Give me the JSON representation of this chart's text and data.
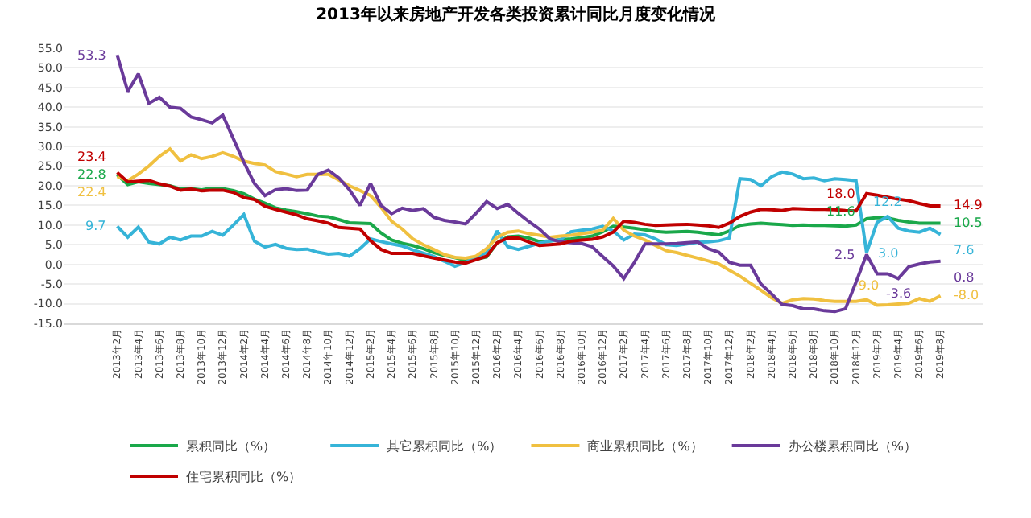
{
  "chart_data": {
    "type": "line",
    "title": "2013年以来房地产开发各类投资累计同比月度变化情况",
    "categories": [
      "2013年2月",
      null,
      "2013年4月",
      null,
      "2013年6月",
      null,
      "2013年8月",
      null,
      "2013年10月",
      null,
      "2013年12月",
      null,
      "2014年2月",
      null,
      "2014年4月",
      null,
      "2014年6月",
      null,
      "2014年8月",
      null,
      "2014年10月",
      null,
      "2014年12月",
      null,
      "2015年2月",
      null,
      "2015年4月",
      null,
      "2015年6月",
      null,
      "2015年8月",
      null,
      "2015年10月",
      null,
      "2015年12月",
      null,
      "2016年2月",
      null,
      "2016年4月",
      null,
      "2016年6月",
      null,
      "2016年8月",
      null,
      "2016年10月",
      null,
      "2016年12月",
      null,
      "2017年2月",
      null,
      "2017年4月",
      null,
      "2017年6月",
      null,
      "2017年8月",
      null,
      "2017年10月",
      null,
      "2017年12月",
      null,
      "2018年2月",
      null,
      "2018年4月",
      null,
      "2018年6月",
      null,
      "2018年8月",
      null,
      "2018年10月",
      null,
      "2018年12月",
      null,
      "2019年2月",
      null,
      "2019年4月",
      null,
      "2019年6月",
      null,
      "2019年8月"
    ],
    "series": [
      {
        "name": "累积同比（%）",
        "color": "#1aa84a",
        "values": [
          22.8,
          20.3,
          21.0,
          20.6,
          20.3,
          20.0,
          19.2,
          19.3,
          19.0,
          19.4,
          19.3,
          18.8,
          18.0,
          16.6,
          15.6,
          14.4,
          13.8,
          13.4,
          12.9,
          12.3,
          12.1,
          11.4,
          10.6,
          10.5,
          10.4,
          8.0,
          6.2,
          5.4,
          4.8,
          4.0,
          3.0,
          2.3,
          1.7,
          1.0,
          1.3,
          1.9,
          5.5,
          7.0,
          7.2,
          6.7,
          5.8,
          6.0,
          6.3,
          6.5,
          6.8,
          7.2,
          8.3,
          9.7,
          9.5,
          9.2,
          8.8,
          8.4,
          8.2,
          8.3,
          8.4,
          8.2,
          7.8,
          7.5,
          8.5,
          9.9,
          10.3,
          10.5,
          10.3,
          10.1,
          9.9,
          10.0,
          9.9,
          9.9,
          9.8,
          9.7,
          10.0,
          11.6,
          11.9,
          11.8,
          11.2,
          10.8,
          10.5,
          10.5,
          10.5
        ],
        "value_labels": [
          "22.8",
          null,
          null,
          null,
          null,
          null,
          null,
          null,
          null,
          null,
          null,
          null,
          null,
          null,
          null,
          null,
          null,
          null,
          null,
          null,
          null,
          null,
          null,
          null,
          null,
          null,
          null,
          null,
          null,
          null,
          null,
          null,
          null,
          null,
          null,
          null,
          null,
          null,
          null,
          null,
          null,
          null,
          null,
          null,
          null,
          null,
          null,
          null,
          null,
          null,
          null,
          null,
          null,
          null,
          null,
          null,
          null,
          null,
          null,
          null,
          null,
          null,
          null,
          null,
          null,
          null,
          null,
          null,
          null,
          null,
          null,
          "11.6",
          null,
          null,
          null,
          null,
          null,
          null,
          "10.5"
        ]
      },
      {
        "name": "其它累积同比（%）",
        "color": "#36b4d8",
        "values": [
          9.7,
          6.9,
          9.5,
          5.7,
          5.2,
          6.9,
          6.2,
          7.2,
          7.2,
          8.4,
          7.4,
          10.0,
          12.7,
          5.9,
          4.4,
          5.1,
          4.1,
          3.8,
          3.9,
          3.1,
          2.6,
          2.8,
          2.1,
          4.0,
          6.5,
          5.8,
          5.2,
          4.7,
          3.7,
          2.9,
          2.0,
          0.8,
          -0.5,
          0.5,
          1.9,
          3.0,
          8.5,
          4.5,
          3.8,
          4.6,
          5.4,
          5.9,
          6.3,
          8.3,
          8.7,
          9.0,
          9.7,
          8.5,
          6.2,
          7.7,
          7.5,
          6.5,
          5.0,
          4.8,
          5.2,
          5.6,
          5.7,
          6.0,
          6.7,
          21.8,
          21.6,
          20.0,
          22.3,
          23.5,
          23.0,
          21.8,
          22.0,
          21.3,
          21.8,
          21.6,
          21.3,
          3.0,
          10.7,
          12.2,
          9.2,
          8.5,
          8.2,
          9.2,
          7.6
        ],
        "value_labels": [
          "9.7",
          null,
          null,
          null,
          null,
          null,
          null,
          null,
          null,
          null,
          null,
          null,
          null,
          null,
          null,
          null,
          null,
          null,
          null,
          null,
          null,
          null,
          null,
          null,
          null,
          null,
          null,
          null,
          null,
          null,
          null,
          null,
          null,
          null,
          null,
          null,
          null,
          null,
          null,
          null,
          null,
          null,
          null,
          null,
          null,
          null,
          null,
          null,
          null,
          null,
          null,
          null,
          null,
          null,
          null,
          null,
          null,
          null,
          null,
          null,
          null,
          null,
          null,
          null,
          null,
          null,
          null,
          null,
          null,
          null,
          null,
          "3.0",
          null,
          "12.2",
          null,
          null,
          null,
          null,
          "7.6"
        ]
      },
      {
        "name": "商业累积同比（%）",
        "color": "#f0c040",
        "values": [
          22.4,
          21.3,
          23.0,
          25.0,
          27.5,
          29.4,
          26.3,
          27.9,
          26.9,
          27.5,
          28.4,
          27.5,
          26.3,
          25.7,
          25.3,
          23.6,
          23.0,
          22.3,
          22.9,
          22.9,
          22.9,
          21.5,
          20.0,
          18.8,
          17.5,
          14.5,
          11.0,
          9.0,
          6.5,
          5.0,
          3.8,
          2.5,
          1.8,
          1.6,
          2.1,
          4.0,
          6.9,
          8.2,
          8.5,
          7.8,
          7.4,
          6.9,
          7.2,
          7.4,
          7.8,
          8.2,
          8.7,
          11.7,
          8.7,
          7.2,
          6.2,
          4.8,
          3.5,
          3.0,
          2.3,
          1.6,
          0.9,
          0.1,
          -1.5,
          -3.0,
          -4.8,
          -6.6,
          -8.5,
          -9.9,
          -9.0,
          -8.7,
          -8.8,
          -9.2,
          -9.4,
          -9.4,
          -9.4,
          -9.0,
          -10.4,
          -10.3,
          -10.1,
          -9.9,
          -8.7,
          -9.4,
          -8.0
        ],
        "value_labels": [
          "22.4",
          null,
          null,
          null,
          null,
          null,
          null,
          null,
          null,
          null,
          null,
          null,
          null,
          null,
          null,
          null,
          null,
          null,
          null,
          null,
          null,
          null,
          null,
          null,
          null,
          null,
          null,
          null,
          null,
          null,
          null,
          null,
          null,
          null,
          null,
          null,
          null,
          null,
          null,
          null,
          null,
          null,
          null,
          null,
          null,
          null,
          null,
          null,
          null,
          null,
          null,
          null,
          null,
          null,
          null,
          null,
          null,
          null,
          null,
          null,
          null,
          null,
          null,
          null,
          null,
          null,
          null,
          null,
          null,
          null,
          null,
          "-9.0",
          null,
          null,
          null,
          null,
          null,
          null,
          "-8.0"
        ]
      },
      {
        "name": "办公楼累积同比（%）",
        "color": "#6a3a9a",
        "values": [
          53.3,
          44.0,
          48.5,
          41.0,
          42.5,
          40.0,
          39.7,
          37.5,
          36.8,
          36.0,
          38.0,
          32.0,
          26.0,
          20.6,
          17.5,
          19.0,
          19.3,
          18.8,
          18.9,
          22.9,
          24.0,
          22.0,
          19.0,
          15.0,
          20.6,
          15.0,
          12.9,
          14.3,
          13.7,
          14.2,
          12.0,
          11.2,
          10.8,
          10.3,
          13.0,
          16.0,
          14.2,
          15.3,
          13.0,
          10.9,
          9.0,
          6.5,
          5.7,
          5.5,
          5.3,
          4.5,
          2.0,
          -0.4,
          -3.6,
          0.5,
          5.2,
          5.2,
          5.2,
          5.3,
          5.5,
          5.7,
          4.0,
          3.1,
          0.5,
          -0.2,
          -0.2,
          -5.0,
          -7.5,
          -10.2,
          -10.5,
          -11.3,
          -11.3,
          -11.8,
          -12.0,
          -11.3,
          -4.5,
          2.5,
          -2.4,
          -2.4,
          -3.6,
          -0.6,
          0.1,
          0.6,
          0.8
        ],
        "value_labels": [
          "53.3",
          null,
          null,
          null,
          null,
          null,
          null,
          null,
          null,
          null,
          null,
          null,
          null,
          null,
          null,
          null,
          null,
          null,
          null,
          null,
          null,
          null,
          null,
          null,
          null,
          null,
          null,
          null,
          null,
          null,
          null,
          null,
          null,
          null,
          null,
          null,
          null,
          null,
          null,
          null,
          null,
          null,
          null,
          null,
          null,
          null,
          null,
          null,
          null,
          null,
          null,
          null,
          null,
          null,
          null,
          null,
          null,
          null,
          null,
          null,
          null,
          null,
          null,
          null,
          null,
          null,
          null,
          null,
          null,
          null,
          null,
          "2.5",
          null,
          null,
          "-3.6",
          null,
          null,
          null,
          "0.8"
        ]
      },
      {
        "name": "住宅累积同比（%）",
        "color": "#c00000",
        "values": [
          23.4,
          21.0,
          21.2,
          21.4,
          20.5,
          19.9,
          18.9,
          19.2,
          18.7,
          18.9,
          18.9,
          18.3,
          17.0,
          16.5,
          14.8,
          14.0,
          13.3,
          12.6,
          11.6,
          11.1,
          10.5,
          9.4,
          9.2,
          9.0,
          6.0,
          3.8,
          2.8,
          2.8,
          2.8,
          2.2,
          1.6,
          1.1,
          0.6,
          0.3,
          1.2,
          2.1,
          5.5,
          6.7,
          6.7,
          5.7,
          4.8,
          5.0,
          5.2,
          5.9,
          6.2,
          6.4,
          7.0,
          8.2,
          11.0,
          10.7,
          10.2,
          9.9,
          10.0,
          10.1,
          10.2,
          10.0,
          9.8,
          9.4,
          10.5,
          12.2,
          13.3,
          14.0,
          13.9,
          13.7,
          14.2,
          14.1,
          14.0,
          14.0,
          13.9,
          13.7,
          13.6,
          18.0,
          17.6,
          17.1,
          16.6,
          16.2,
          15.5,
          14.9,
          14.9
        ],
        "value_labels": [
          "23.4",
          null,
          null,
          null,
          null,
          null,
          null,
          null,
          null,
          null,
          null,
          null,
          null,
          null,
          null,
          null,
          null,
          null,
          null,
          null,
          null,
          null,
          null,
          null,
          null,
          null,
          null,
          null,
          null,
          null,
          null,
          null,
          null,
          null,
          null,
          null,
          null,
          null,
          null,
          null,
          null,
          null,
          null,
          null,
          null,
          null,
          null,
          null,
          null,
          null,
          null,
          null,
          null,
          null,
          null,
          null,
          null,
          null,
          null,
          null,
          null,
          null,
          null,
          null,
          null,
          null,
          null,
          null,
          null,
          null,
          null,
          "18.0",
          null,
          null,
          null,
          null,
          null,
          null,
          "14.9"
        ]
      }
    ],
    "ylim": [
      -15,
      55
    ],
    "yticks": [
      {
        "value": -15,
        "label": "-15.0"
      },
      {
        "value": -10,
        "label": "-10.0"
      },
      {
        "value": -5,
        "label": "-5.0"
      },
      {
        "value": 0,
        "label": "0.0"
      },
      {
        "value": 5,
        "label": "5.0"
      },
      {
        "value": 10,
        "label": "10.0"
      },
      {
        "value": 15,
        "label": "15.0"
      },
      {
        "value": 20,
        "label": "20.0"
      },
      {
        "value": 25,
        "label": "25.0"
      },
      {
        "value": 30,
        "label": "30.0"
      },
      {
        "value": 35,
        "label": "35.0"
      },
      {
        "value": 40,
        "label": "40.0"
      },
      {
        "value": 45,
        "label": "45.0"
      },
      {
        "value": 50,
        "label": "50.0"
      },
      {
        "value": 55,
        "label": "55.0"
      }
    ],
    "grid": "y",
    "legend": "bottom",
    "marker": "none",
    "line_style": "solid"
  }
}
